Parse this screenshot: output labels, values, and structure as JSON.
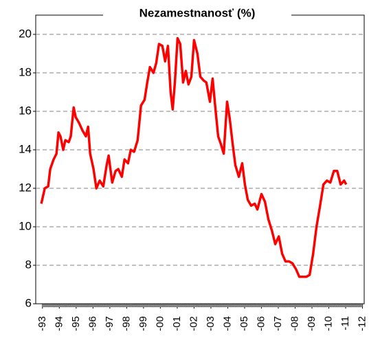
{
  "chart_data": {
    "type": "line",
    "title": "Nezamestnanosť (%)",
    "series": [
      {
        "name": "Nezamestnanosť",
        "color": "#ff0000",
        "x": [
          1992.93,
          1993.14,
          1993.34,
          1993.46,
          1993.66,
          1993.83,
          1993.95,
          1994.07,
          1994.23,
          1994.36,
          1994.56,
          1994.68,
          1994.85,
          1994.97,
          1995.17,
          1995.38,
          1995.58,
          1995.71,
          1995.83,
          1996.03,
          1996.2,
          1996.4,
          1996.61,
          1996.81,
          1996.93,
          1997.14,
          1997.34,
          1997.5,
          1997.71,
          1997.87,
          1998.08,
          1998.24,
          1998.44,
          1998.65,
          1998.85,
          1999.06,
          1999.22,
          1999.38,
          1999.59,
          1999.75,
          1999.92,
          2000.12,
          2000.28,
          2000.45,
          2000.61,
          2000.73,
          2000.86,
          2001.02,
          2001.18,
          2001.35,
          2001.51,
          2001.67,
          2001.84,
          2002.0,
          2002.2,
          2002.37,
          2002.57,
          2002.73,
          2002.94,
          2003.1,
          2003.27,
          2003.43,
          2003.59,
          2003.76,
          2003.96,
          2004.12,
          2004.29,
          2004.45,
          2004.66,
          2004.86,
          2005.02,
          2005.19,
          2005.39,
          2005.6,
          2005.76,
          2006.0,
          2006.21,
          2006.41,
          2006.62,
          2006.82,
          2007.03,
          2007.23,
          2007.43,
          2007.64,
          2007.84,
          2008.05,
          2008.25,
          2008.46,
          2008.66,
          2008.86,
          2009.07,
          2009.27,
          2009.48,
          2009.68,
          2009.89,
          2010.09,
          2010.3,
          2010.5,
          2010.7,
          2010.91,
          2011.03
        ],
        "values": [
          11.2,
          12.0,
          12.1,
          13.0,
          13.5,
          13.8,
          14.9,
          14.7,
          14.0,
          14.5,
          14.4,
          14.7,
          16.2,
          15.7,
          15.4,
          15.0,
          14.7,
          15.2,
          13.8,
          13.0,
          12.0,
          12.4,
          12.1,
          13.2,
          13.7,
          12.3,
          12.9,
          13.0,
          12.6,
          13.5,
          13.3,
          14.0,
          13.9,
          14.5,
          16.3,
          16.6,
          17.5,
          18.3,
          18.0,
          18.5,
          19.5,
          19.4,
          18.6,
          19.4,
          17.0,
          16.1,
          17.5,
          19.8,
          19.5,
          17.5,
          18.1,
          17.4,
          17.8,
          19.7,
          19.0,
          17.8,
          17.6,
          17.5,
          16.5,
          17.7,
          16.1,
          14.7,
          14.3,
          13.8,
          16.5,
          15.6,
          14.3,
          13.2,
          12.6,
          13.3,
          12.2,
          11.4,
          11.1,
          11.2,
          10.9,
          11.7,
          11.3,
          10.4,
          9.8,
          9.1,
          9.5,
          8.6,
          8.2,
          8.2,
          8.1,
          7.8,
          7.4,
          7.4,
          7.4,
          7.5,
          8.6,
          10.0,
          11.1,
          12.2,
          12.4,
          12.3,
          12.9,
          12.9,
          12.2,
          12.4,
          12.2
        ]
      }
    ],
    "xlim": [
      1992.6,
      2012.1
    ],
    "xticks": [
      {
        "value": 1993,
        "label": "-93"
      },
      {
        "value": 1994,
        "label": "-94"
      },
      {
        "value": 1995,
        "label": "-95"
      },
      {
        "value": 1996,
        "label": "-96"
      },
      {
        "value": 1997,
        "label": "-97"
      },
      {
        "value": 1998,
        "label": "-98"
      },
      {
        "value": 1999,
        "label": "-99"
      },
      {
        "value": 2000,
        "label": "-00"
      },
      {
        "value": 2001,
        "label": "-01"
      },
      {
        "value": 2002,
        "label": "-02"
      },
      {
        "value": 2003,
        "label": "-03"
      },
      {
        "value": 2004,
        "label": "-04"
      },
      {
        "value": 2005,
        "label": "-05"
      },
      {
        "value": 2006,
        "label": "-06"
      },
      {
        "value": 2007,
        "label": "-07"
      },
      {
        "value": 2008,
        "label": "-08"
      },
      {
        "value": 2009,
        "label": "-09"
      },
      {
        "value": 2010,
        "label": "-10"
      },
      {
        "value": 2011,
        "label": "-11"
      },
      {
        "value": 2012,
        "label": "-12"
      }
    ],
    "ylim": [
      6,
      21
    ],
    "yticks": [
      6,
      8,
      10,
      12,
      14,
      16,
      18,
      20
    ],
    "grid": true
  }
}
